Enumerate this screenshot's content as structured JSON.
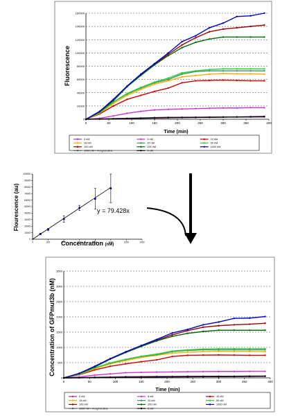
{
  "chart_data": [
    {
      "type": "line",
      "title": "",
      "xlabel": "Time (min)",
      "ylabel": "Fluorescence",
      "xlim": [
        0,
        400
      ],
      "ylim": [
        0,
        160000
      ],
      "xticks": [
        "0",
        "50",
        "100",
        "150",
        "200",
        "250",
        "300",
        "350",
        "400"
      ],
      "yticks": [
        "0",
        "20000",
        "40000",
        "60000",
        "80000",
        "100000",
        "120000",
        "140000",
        "160000"
      ],
      "grid": true,
      "legend_position": "bottom",
      "x": [
        0,
        30,
        60,
        90,
        120,
        150,
        180,
        210,
        240,
        270,
        300,
        330,
        360,
        390
      ],
      "series": [
        {
          "name": "0 nM",
          "color": "#993399",
          "values": [
            0,
            500,
            1000,
            1500,
            2000,
            2500,
            3000,
            3000,
            3200,
            3200,
            3300,
            3300,
            3400,
            3400
          ]
        },
        {
          "name": "5 nM",
          "color": "#cc33cc",
          "values": [
            0,
            1500,
            5000,
            9000,
            12000,
            14000,
            15000,
            15500,
            16000,
            16500,
            17000,
            17000,
            17500,
            17500
          ]
        },
        {
          "name": "10 nM",
          "color": "#cc0000",
          "values": [
            0,
            8000,
            20000,
            30000,
            36000,
            42000,
            47000,
            55000,
            58000,
            58500,
            59000,
            58500,
            58000,
            58000
          ]
        },
        {
          "name": "15 nM",
          "color": "#ffaa00",
          "values": [
            0,
            9000,
            24000,
            36000,
            45000,
            53000,
            58000,
            64000,
            66000,
            68000,
            69000,
            68500,
            68500,
            68000
          ]
        },
        {
          "name": "20 nM",
          "color": "#339966",
          "values": [
            0,
            10000,
            26000,
            38000,
            47000,
            55000,
            60000,
            68000,
            72000,
            73000,
            73000,
            73000,
            73000,
            73000
          ]
        },
        {
          "name": "50 nM",
          "color": "#33cc33",
          "values": [
            0,
            10000,
            26000,
            39000,
            48000,
            56000,
            62000,
            70000,
            73000,
            75000,
            76000,
            76000,
            76000,
            76000
          ]
        },
        {
          "name": "100 nM",
          "color": "#990000",
          "values": [
            0,
            11000,
            29000,
            50000,
            67000,
            83000,
            98000,
            112000,
            123000,
            132000,
            136000,
            138000,
            140000,
            142000
          ]
        },
        {
          "name": "200 nM",
          "color": "#006600",
          "values": [
            0,
            11000,
            28000,
            49000,
            66000,
            82000,
            96000,
            108000,
            116000,
            121000,
            124000,
            124000,
            124000,
            124000
          ]
        },
        {
          "name": "1000 nM",
          "color": "#0000cc",
          "values": [
            0,
            12000,
            30000,
            50000,
            68000,
            84000,
            100000,
            117000,
            126000,
            138000,
            145000,
            155000,
            156000,
            160000
          ]
        },
        {
          "name": "1000 nM + 4 mg/ml citric",
          "color": "#555555",
          "values": [
            0,
            300,
            800,
            1200,
            1700,
            2000,
            2300,
            2500,
            2800,
            3000,
            3200,
            3500,
            3700,
            4000
          ]
        },
        {
          "name": "0 nM",
          "color": "#000000",
          "values": [
            0,
            200,
            600,
            1000,
            1400,
            1800,
            2200,
            2500,
            2700,
            3000,
            3200,
            3500,
            3700,
            4200
          ]
        }
      ]
    },
    {
      "type": "scatter",
      "title": "",
      "xlabel": "Concentration",
      "xlabel_unit": "(nM)",
      "ylabel": "Flourescence (au)",
      "xlim": [
        0,
        1400
      ],
      "ylim": [
        0,
        100000
      ],
      "xticks": [
        "0",
        "200",
        "400",
        "600",
        "800",
        "1000",
        "1200",
        "1400"
      ],
      "yticks": [
        "0",
        "10000",
        "20000",
        "30000",
        "40000",
        "50000",
        "60000",
        "70000",
        "80000",
        "90000",
        "100000"
      ],
      "grid": false,
      "annotation": "y = 79.428x",
      "points": [
        {
          "x": 100,
          "y": 8000,
          "err": 1000
        },
        {
          "x": 200,
          "y": 15000,
          "err": 1500
        },
        {
          "x": 400,
          "y": 31000,
          "err": 5000
        },
        {
          "x": 600,
          "y": 48000,
          "err": 4000
        },
        {
          "x": 800,
          "y": 62000,
          "err": 16000
        },
        {
          "x": 1000,
          "y": 78000,
          "err": 22000
        }
      ],
      "fit": {
        "slope": 79.428,
        "x": [
          0,
          1000
        ]
      }
    },
    {
      "type": "line",
      "title": "",
      "xlabel": "Time (min)",
      "ylabel": "Concentration of GFPmut3b (nM)",
      "xlim": [
        0,
        400
      ],
      "ylim": [
        0,
        3500
      ],
      "xticks": [
        "0",
        "50",
        "100",
        "150",
        "200",
        "250",
        "300",
        "350",
        "400"
      ],
      "yticks": [
        "0",
        "500",
        "1000",
        "1500",
        "2000",
        "2500",
        "3000",
        "3500"
      ],
      "grid": true,
      "legend_position": "bottom",
      "x": [
        0,
        30,
        60,
        90,
        120,
        150,
        180,
        210,
        240,
        270,
        300,
        330,
        360,
        390
      ],
      "series": [
        {
          "name": "0 nM",
          "color": "#993399",
          "values": [
            0,
            10,
            20,
            30,
            40,
            45,
            50,
            50,
            55,
            55,
            55,
            55,
            60,
            60
          ]
        },
        {
          "name": "5 nM",
          "color": "#cc33cc",
          "values": [
            0,
            30,
            90,
            130,
            170,
            180,
            190,
            195,
            200,
            205,
            210,
            210,
            215,
            215
          ]
        },
        {
          "name": "10 nM",
          "color": "#cc0000",
          "values": [
            0,
            100,
            260,
            380,
            460,
            530,
            590,
            700,
            740,
            745,
            750,
            745,
            740,
            740
          ]
        },
        {
          "name": "15 nM",
          "color": "#ffaa00",
          "values": [
            0,
            110,
            300,
            460,
            570,
            670,
            740,
            810,
            840,
            860,
            870,
            865,
            865,
            860
          ]
        },
        {
          "name": "20 nM",
          "color": "#339966",
          "values": [
            0,
            120,
            330,
            480,
            600,
            700,
            760,
            860,
            900,
            920,
            920,
            920,
            920,
            920
          ]
        },
        {
          "name": "50 nM",
          "color": "#33cc33",
          "values": [
            0,
            125,
            330,
            490,
            610,
            710,
            780,
            880,
            920,
            945,
            955,
            955,
            955,
            955
          ]
        },
        {
          "name": "100 nM",
          "color": "#990000",
          "values": [
            0,
            140,
            365,
            630,
            840,
            1050,
            1230,
            1410,
            1550,
            1660,
            1710,
            1740,
            1760,
            1790
          ]
        },
        {
          "name": "200 nM",
          "color": "#006600",
          "values": [
            0,
            140,
            355,
            615,
            830,
            1030,
            1210,
            1360,
            1460,
            1520,
            1560,
            1560,
            1560,
            1560
          ]
        },
        {
          "name": "1000 nM",
          "color": "#0000cc",
          "values": [
            0,
            150,
            380,
            630,
            855,
            1060,
            1260,
            1470,
            1590,
            1740,
            1830,
            1950,
            1960,
            2010
          ]
        },
        {
          "name": "1000 nM + 4 mg/ml citric",
          "color": "#555555",
          "values": [
            0,
            5,
            10,
            15,
            22,
            26,
            30,
            32,
            35,
            38,
            40,
            44,
            47,
            50
          ]
        },
        {
          "name": "0 nM",
          "color": "#000000",
          "values": [
            0,
            3,
            8,
            12,
            18,
            22,
            28,
            32,
            35,
            38,
            40,
            44,
            47,
            53
          ]
        }
      ]
    }
  ],
  "legend_labels_small": [
    "0 nM",
    "5 nM",
    "10 nM",
    "15 nM",
    "20 nM",
    "50 nM",
    "100 nM",
    "200 nM",
    "1000 nM",
    "1000 nM + 4 mg/ml citric",
    "0 nM"
  ]
}
